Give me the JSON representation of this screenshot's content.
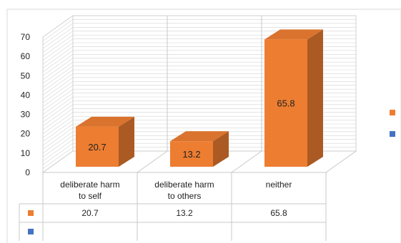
{
  "chart_data": {
    "type": "bar",
    "categories": [
      "deliberate harm to self",
      "deliberate harm to others",
      "neither"
    ],
    "category_lines": [
      [
        "deliberate harm",
        "to self"
      ],
      [
        "deliberate harm",
        "to others"
      ],
      [
        "neither"
      ]
    ],
    "series": [
      {
        "name": "",
        "values": [
          20.7,
          13.2,
          65.8
        ],
        "color": "#ED7D31"
      },
      {
        "name": "",
        "values": [
          null,
          null,
          null
        ],
        "color": "#4472C4"
      }
    ],
    "data_labels": [
      "20.7",
      "13.2",
      "65.8"
    ],
    "table_values": [
      [
        "20.7",
        "13.2",
        "65.8"
      ],
      [
        "",
        "",
        ""
      ]
    ],
    "y_ticks": [
      "0",
      "10",
      "20",
      "30",
      "40",
      "50",
      "60",
      "70"
    ],
    "ylim": [
      0,
      70
    ],
    "grid": true,
    "three_d": true,
    "data_table": true,
    "legend": "right",
    "title": "",
    "xlabel": "",
    "ylabel": ""
  }
}
